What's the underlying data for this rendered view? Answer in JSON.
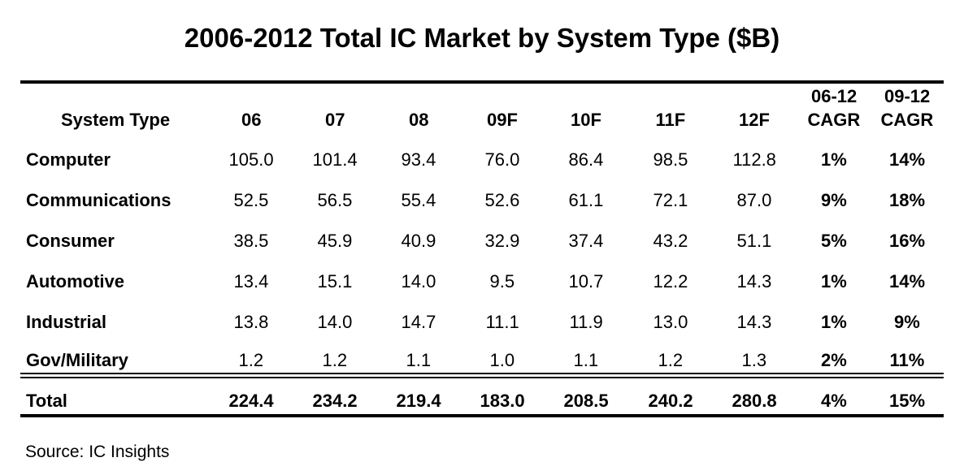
{
  "title": "2006-2012 Total IC Market by System Type ($B)",
  "table": {
    "header": [
      "System Type",
      "06",
      "07",
      "08",
      "09F",
      "10F",
      "11F",
      "12F",
      [
        "06-12",
        "CAGR"
      ],
      [
        "09-12",
        "CAGR"
      ]
    ],
    "rows": [
      [
        "Computer",
        "105.0",
        "101.4",
        "93.4",
        "76.0",
        "86.4",
        "98.5",
        "112.8",
        "1%",
        "14%"
      ],
      [
        "Communications",
        "52.5",
        "56.5",
        "55.4",
        "52.6",
        "61.1",
        "72.1",
        "87.0",
        "9%",
        "18%"
      ],
      [
        "Consumer",
        "38.5",
        "45.9",
        "40.9",
        "32.9",
        "37.4",
        "43.2",
        "51.1",
        "5%",
        "16%"
      ],
      [
        "Automotive",
        "13.4",
        "15.1",
        "14.0",
        "9.5",
        "10.7",
        "12.2",
        "14.3",
        "1%",
        "14%"
      ],
      [
        "Industrial",
        "13.8",
        "14.0",
        "14.7",
        "11.1",
        "11.9",
        "13.0",
        "14.3",
        "1%",
        "9%"
      ],
      [
        "Gov/Military",
        "1.2",
        "1.2",
        "1.1",
        "1.0",
        "1.1",
        "1.2",
        "1.3",
        "2%",
        "11%"
      ]
    ],
    "total": [
      "Total",
      "224.4",
      "234.2",
      "219.4",
      "183.0",
      "208.5",
      "240.2",
      "280.8",
      "4%",
      "15%"
    ]
  },
  "source": "Source: IC Insights"
}
